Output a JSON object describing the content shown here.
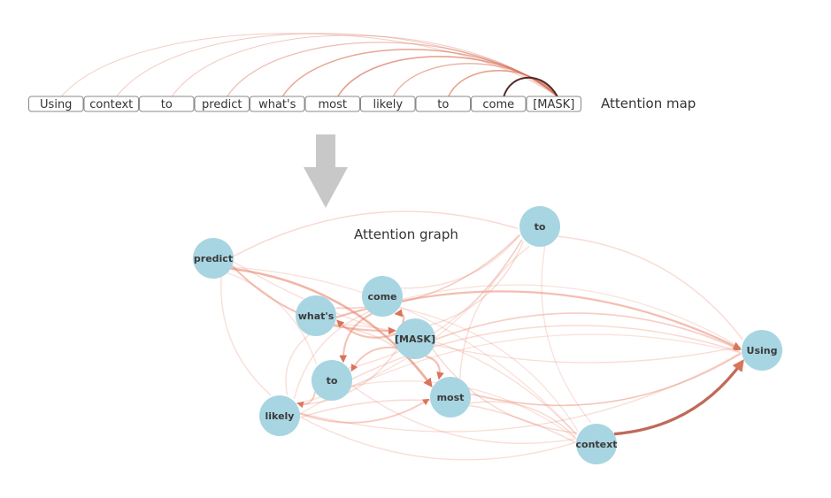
{
  "attention_map": {
    "caption": "Attention map",
    "tokens": [
      "Using",
      "context",
      "to",
      "predict",
      "what's",
      "most",
      "likely",
      "to",
      "come",
      "[MASK]"
    ],
    "arcs": [
      {
        "from": 0,
        "strength": 0.15
      },
      {
        "from": 1,
        "strength": 0.2
      },
      {
        "from": 2,
        "strength": 0.18
      },
      {
        "from": 3,
        "strength": 0.35
      },
      {
        "from": 4,
        "strength": 0.55
      },
      {
        "from": 5,
        "strength": 0.65
      },
      {
        "from": 6,
        "strength": 0.45
      },
      {
        "from": 7,
        "strength": 0.6
      },
      {
        "from": 8,
        "strength": 1.0
      }
    ]
  },
  "arrow": {
    "icon": "down-arrow-icon",
    "color": "#c8c8c8"
  },
  "attention_graph": {
    "caption": "Attention graph",
    "node_color": "#a8d5e2",
    "edge_color": "#e8836a",
    "nodes": [
      {
        "id": "to_a",
        "label": "to"
      },
      {
        "id": "predict",
        "label": "predict"
      },
      {
        "id": "come",
        "label": "come"
      },
      {
        "id": "whats",
        "label": "what's"
      },
      {
        "id": "mask",
        "label": "[MASK]"
      },
      {
        "id": "using",
        "label": "Using"
      },
      {
        "id": "to_b",
        "label": "to"
      },
      {
        "id": "most",
        "label": "most"
      },
      {
        "id": "likely",
        "label": "likely"
      },
      {
        "id": "context",
        "label": "context"
      }
    ],
    "edges": [
      {
        "from": "context",
        "to": "using",
        "weight": 0.9
      },
      {
        "from": "predict",
        "to": "most",
        "weight": 0.6
      },
      {
        "from": "predict",
        "to": "mask",
        "weight": 0.45
      },
      {
        "from": "whats",
        "to": "using",
        "weight": 0.5
      },
      {
        "from": "mask",
        "to": "come",
        "weight": 0.5
      },
      {
        "from": "mask",
        "to": "whats",
        "weight": 0.45
      },
      {
        "from": "mask",
        "to": "to_b",
        "weight": 0.4
      },
      {
        "from": "mask",
        "to": "most",
        "weight": 0.45
      },
      {
        "from": "come",
        "to": "to_b",
        "weight": 0.45
      },
      {
        "from": "to_b",
        "to": "likely",
        "weight": 0.35
      },
      {
        "from": "likely",
        "to": "most",
        "weight": 0.35
      },
      {
        "from": "predict",
        "to": "to_a",
        "weight": 0.2
      },
      {
        "from": "predict",
        "to": "using",
        "weight": 0.15
      },
      {
        "from": "predict",
        "to": "context",
        "weight": 0.12
      },
      {
        "from": "predict",
        "to": "likely",
        "weight": 0.15
      },
      {
        "from": "predict",
        "to": "to_b",
        "weight": 0.12
      },
      {
        "from": "whats",
        "to": "to_a",
        "weight": 0.15
      },
      {
        "from": "whats",
        "to": "context",
        "weight": 0.15
      },
      {
        "from": "whats",
        "to": "likely",
        "weight": 0.15
      },
      {
        "from": "whats",
        "to": "most",
        "weight": 0.2
      },
      {
        "from": "come",
        "to": "to_a",
        "weight": 0.15
      },
      {
        "from": "come",
        "to": "using",
        "weight": 0.12
      },
      {
        "from": "come",
        "to": "likely",
        "weight": 0.15
      },
      {
        "from": "come",
        "to": "context",
        "weight": 0.12
      },
      {
        "from": "mask",
        "to": "to_a",
        "weight": 0.18
      },
      {
        "from": "mask",
        "to": "using",
        "weight": 0.3
      },
      {
        "from": "mask",
        "to": "context",
        "weight": 0.2
      },
      {
        "from": "mask",
        "to": "likely",
        "weight": 0.2
      },
      {
        "from": "to_b",
        "to": "to_a",
        "weight": 0.15
      },
      {
        "from": "to_b",
        "to": "using",
        "weight": 0.2
      },
      {
        "from": "to_b",
        "to": "context",
        "weight": 0.15
      },
      {
        "from": "most",
        "to": "to_a",
        "weight": 0.15
      },
      {
        "from": "most",
        "to": "using",
        "weight": 0.2
      },
      {
        "from": "most",
        "to": "context",
        "weight": 0.2
      },
      {
        "from": "likely",
        "to": "using",
        "weight": 0.15
      },
      {
        "from": "likely",
        "to": "context",
        "weight": 0.2
      },
      {
        "from": "likely",
        "to": "to_a",
        "weight": 0.12
      },
      {
        "from": "to_a",
        "to": "using",
        "weight": 0.18
      },
      {
        "from": "to_a",
        "to": "context",
        "weight": 0.12
      },
      {
        "from": "context",
        "to": "likely",
        "weight": 0.15
      },
      {
        "from": "context",
        "to": "to_b",
        "weight": 0.12
      },
      {
        "from": "using",
        "to": "most",
        "weight": 0.15
      },
      {
        "from": "using",
        "to": "likely",
        "weight": 0.12
      },
      {
        "from": "to_a",
        "to": "whats",
        "weight": 0.12
      }
    ]
  }
}
